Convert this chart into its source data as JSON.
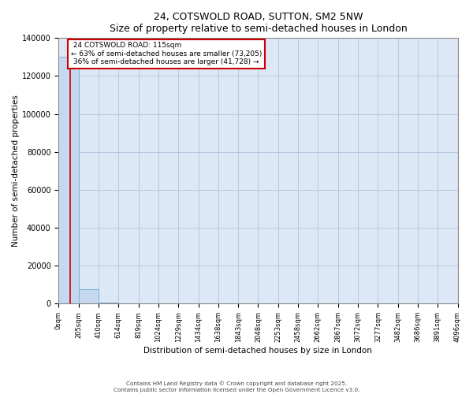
{
  "title": "24, COTSWOLD ROAD, SUTTON, SM2 5NW",
  "subtitle": "Size of property relative to semi-detached houses in London",
  "xlabel": "Distribution of semi-detached houses by size in London",
  "ylabel": "Number of semi-detached properties",
  "property_size_sqm": 115,
  "property_label": "24 COTSWOLD ROAD: 115sqm",
  "pct_smaller": 63,
  "count_smaller": 73205,
  "pct_larger": 36,
  "count_larger": 41728,
  "bar_bins": [
    0,
    205,
    410,
    614,
    819,
    1024,
    1229,
    1434,
    1638,
    1843,
    2048,
    2253,
    2458,
    2662,
    2867,
    3072,
    3277,
    3482,
    3686,
    3891,
    4096
  ],
  "bar_heights": [
    130000,
    7500,
    500,
    150,
    60,
    30,
    15,
    8,
    5,
    4,
    3,
    2,
    2,
    2,
    1,
    1,
    1,
    1,
    1,
    1
  ],
  "bar_color": "#c5d8ef",
  "bar_edge_color": "#7bafd4",
  "red_line_x": 115,
  "annotation_box_color": "#ffffff",
  "annotation_box_edge": "#cc0000",
  "ylim": [
    0,
    140000
  ],
  "yticks": [
    0,
    20000,
    40000,
    60000,
    80000,
    100000,
    120000,
    140000
  ],
  "background_color": "#dce8f5",
  "grid_color": "#b0c4de",
  "footer_line1": "Contains HM Land Registry data © Crown copyright and database right 2025.",
  "footer_line2": "Contains public sector information licensed under the Open Government Licence v3.0."
}
